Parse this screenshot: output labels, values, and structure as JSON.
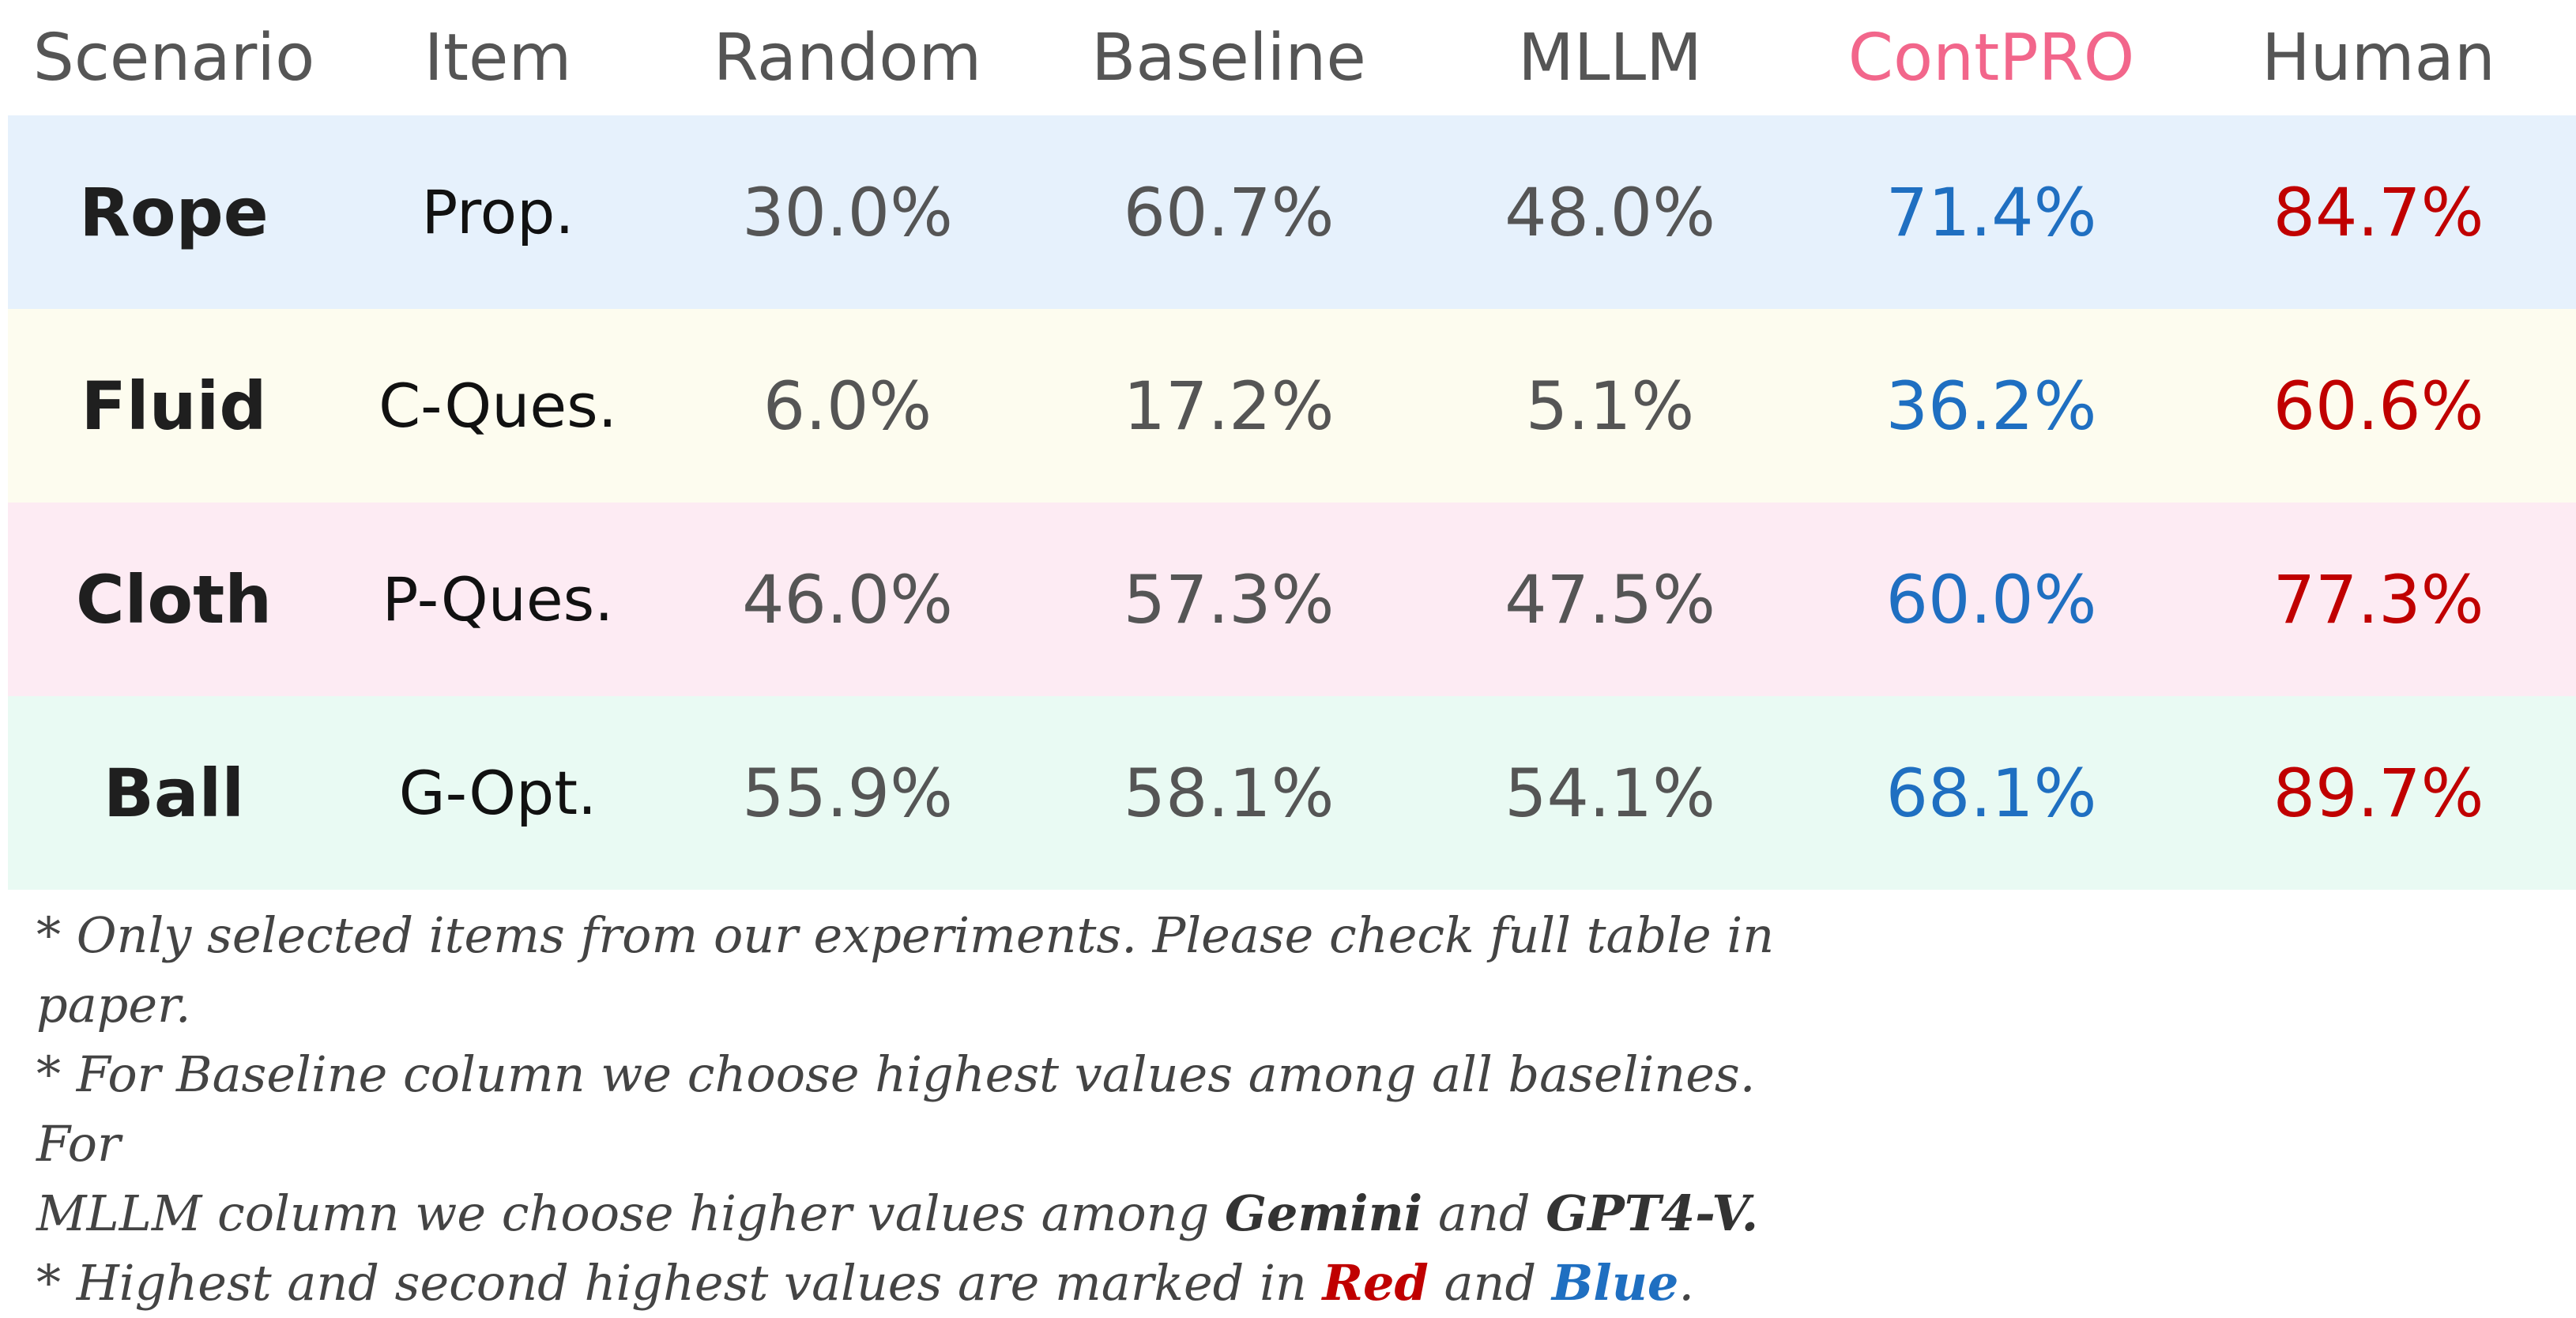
{
  "chart_data": {
    "type": "table",
    "columns": [
      "Scenario",
      "Item",
      "Random",
      "Baseline",
      "MLLM",
      "ContPRO",
      "Human"
    ],
    "highlight_column": "ContPRO",
    "rows": [
      {
        "scenario": "Rope",
        "item": "Prop.",
        "values": [
          "30.0%",
          "60.7%",
          "48.0%",
          "71.4%",
          "84.7%"
        ],
        "row_color": "#e6f1fc"
      },
      {
        "scenario": "Fluid",
        "item": "C-Ques.",
        "values": [
          "6.0%",
          "17.2%",
          "5.1%",
          "36.2%",
          "60.6%"
        ],
        "row_color": "#fdfcef"
      },
      {
        "scenario": "Cloth",
        "item": "P-Ques.",
        "values": [
          "46.0%",
          "57.3%",
          "47.5%",
          "60.0%",
          "77.3%"
        ],
        "row_color": "#fdebf3"
      },
      {
        "scenario": "Ball",
        "item": "G-Opt.",
        "values": [
          "55.9%",
          "58.1%",
          "54.1%",
          "68.1%",
          "89.7%"
        ],
        "row_color": "#e9faf3"
      }
    ],
    "colors": {
      "header_text": "#555555",
      "highlight_header": "#f2668b",
      "value_text": "#555555",
      "highest": "#c00000",
      "second_highest": "#1f6fc1"
    }
  },
  "notes": {
    "line1": "* Only selected items from our experiments. Please check full table in paper.",
    "line2": "* For Baseline column we choose highest values among all baselines. For",
    "line3_pre": "MLLM column we choose higher values among ",
    "line3_gemini": "Gemini",
    "line3_and": " and ",
    "line3_gpt": "GPT4-V.",
    "line4_pre": "* Highest and second highest values are marked in ",
    "line4_red": "Red",
    "line4_and": " and ",
    "line4_blue": "Blue",
    "line4_end": "."
  }
}
